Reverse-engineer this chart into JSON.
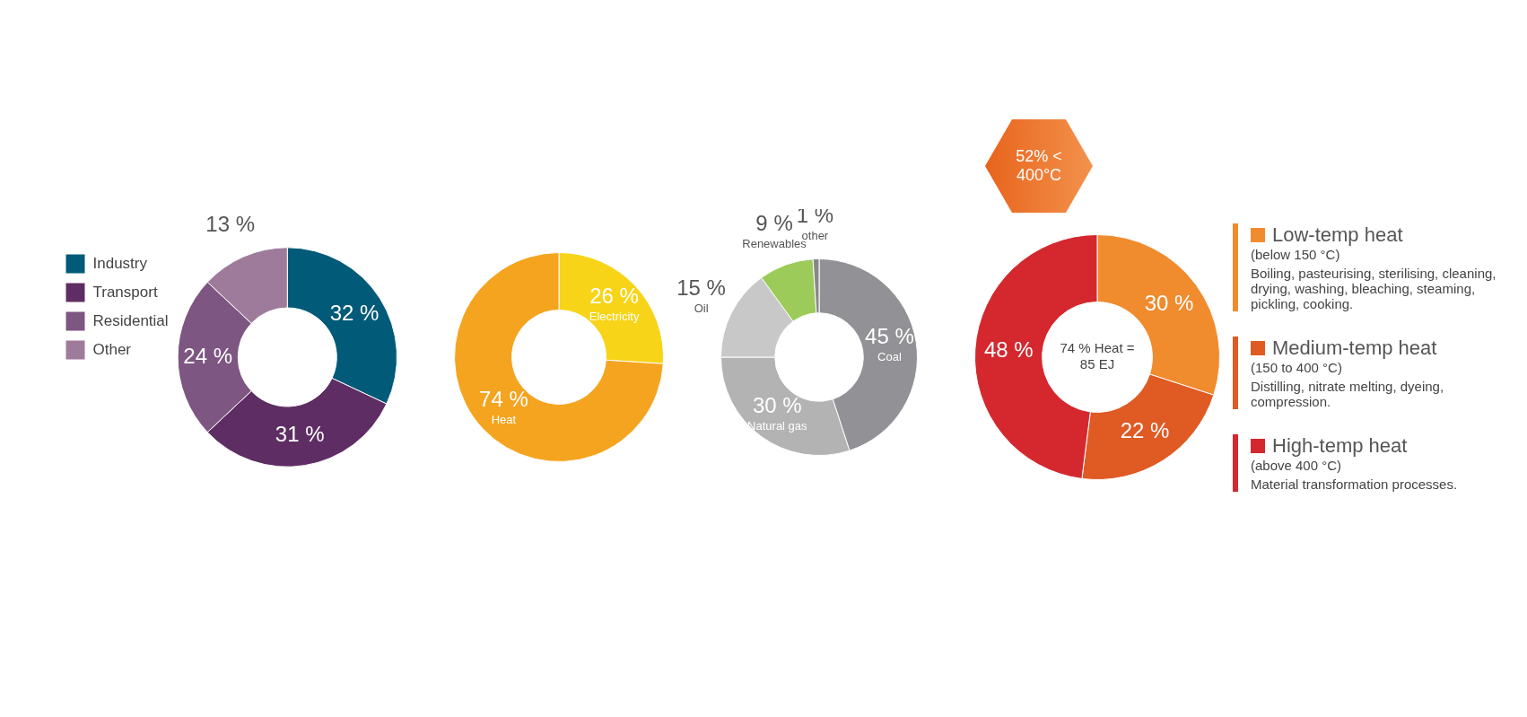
{
  "chart_data": [
    {
      "type": "donut",
      "categories": [
        "Industry",
        "Transport",
        "Residential",
        "Other"
      ],
      "values": [
        32,
        31,
        24,
        13
      ],
      "colors": [
        "#005a78",
        "#5e2d63",
        "#7e5682",
        "#9e7b9b"
      ],
      "value_labels": [
        "32 %",
        "31 %",
        "24 %",
        "13 %"
      ],
      "legend": "top left"
    },
    {
      "type": "donut",
      "categories": [
        "Electricity",
        "Heat"
      ],
      "values": [
        26,
        74
      ],
      "colors": [
        "#f7d417",
        "#f5a41f"
      ],
      "value_labels": [
        "26 %",
        "74 %"
      ]
    },
    {
      "type": "donut",
      "categories": [
        "Coal",
        "Natural gas",
        "Oil",
        "Renewables",
        "other"
      ],
      "values": [
        45,
        30,
        15,
        9,
        1
      ],
      "colors": [
        "#929195",
        "#b3b3b3",
        "#c8c8c8",
        "#9ccb5a",
        "#888888"
      ],
      "value_labels": [
        "45 %",
        "30 %",
        "15 %",
        "9 %",
        "1 %"
      ]
    },
    {
      "type": "donut",
      "categories": [
        "Low-temp heat",
        "Medium-temp heat",
        "High-temp heat"
      ],
      "values": [
        30,
        22,
        48
      ],
      "colors": [
        "#f08b2e",
        "#e05a23",
        "#d4282e"
      ],
      "value_labels": [
        "30 %",
        "22 %",
        "48 %"
      ],
      "legend": "right",
      "annotations": [
        "74 % Heat = 85 EJ",
        "52% < 400°C",
        "(below 150 °C)",
        "Boiling, pasteurising, sterilising, cleaning, drying, washing, bleaching, steaming, pickling, cooking.",
        "(150 to 400 °C)",
        "Distilling, nitrate melting, dyeing, compression.",
        "(above 400 °C)",
        "Material transformation processes."
      ]
    }
  ]
}
